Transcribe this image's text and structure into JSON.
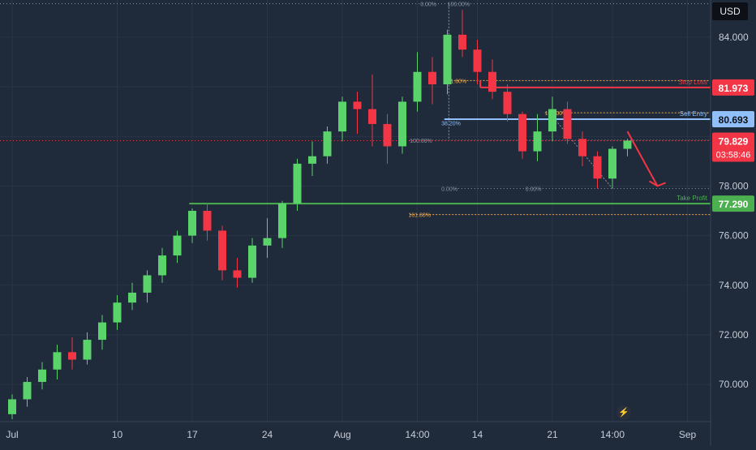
{
  "header": {
    "currency": "USD"
  },
  "chart_data": {
    "type": "candlestick",
    "ylim": [
      68.5,
      85.5
    ],
    "y_ticks": [
      {
        "value": 84,
        "label": "84.000"
      },
      {
        "value": 82,
        "label": ""
      },
      {
        "value": 80,
        "label": ""
      },
      {
        "value": 78,
        "label": "78.000"
      },
      {
        "value": 76,
        "label": "76.000"
      },
      {
        "value": 74,
        "label": "74.000"
      },
      {
        "value": 72,
        "label": "72.000"
      },
      {
        "value": 70,
        "label": "70.000"
      }
    ],
    "x_ticks": [
      {
        "index": 0,
        "label": "Jul"
      },
      {
        "index": 7,
        "label": "10"
      },
      {
        "index": 12,
        "label": "17"
      },
      {
        "index": 17,
        "label": "24"
      },
      {
        "index": 22,
        "label": "Aug"
      },
      {
        "index": 27,
        "label": "14:00"
      },
      {
        "index": 31,
        "label": "14"
      },
      {
        "index": 36,
        "label": "21"
      },
      {
        "index": 40,
        "label": "14:00"
      },
      {
        "index": 45,
        "label": "Sep"
      }
    ],
    "ohlc": [
      [
        68.8,
        69.6,
        68.6,
        69.4
      ],
      [
        69.4,
        70.3,
        69.1,
        70.1
      ],
      [
        70.1,
        70.9,
        69.8,
        70.6
      ],
      [
        70.6,
        71.6,
        70.2,
        71.3
      ],
      [
        71.3,
        71.9,
        70.6,
        71.0
      ],
      [
        71.0,
        72.1,
        70.8,
        71.8
      ],
      [
        71.8,
        72.8,
        71.4,
        72.5
      ],
      [
        72.5,
        73.6,
        72.2,
        73.3
      ],
      [
        73.3,
        74.1,
        73.0,
        73.7
      ],
      [
        73.7,
        74.6,
        73.3,
        74.4
      ],
      [
        74.4,
        75.5,
        74.1,
        75.2
      ],
      [
        75.2,
        76.2,
        74.9,
        76.0
      ],
      [
        76.0,
        77.1,
        75.7,
        77.0
      ],
      [
        77.0,
        77.3,
        75.8,
        76.2
      ],
      [
        76.2,
        76.4,
        74.2,
        74.6
      ],
      [
        74.6,
        75.1,
        73.9,
        74.3
      ],
      [
        74.3,
        75.9,
        74.1,
        75.6
      ],
      [
        75.6,
        76.7,
        75.1,
        75.9
      ],
      [
        75.9,
        77.4,
        75.5,
        77.3
      ],
      [
        77.3,
        79.1,
        77.0,
        78.9
      ],
      [
        78.9,
        79.8,
        78.4,
        79.2
      ],
      [
        79.2,
        80.4,
        78.9,
        80.2
      ],
      [
        80.2,
        81.6,
        79.8,
        81.4
      ],
      [
        81.4,
        81.8,
        80.1,
        81.1
      ],
      [
        81.1,
        82.5,
        79.6,
        80.5
      ],
      [
        80.5,
        80.9,
        78.9,
        79.6
      ],
      [
        79.6,
        81.6,
        79.3,
        81.4
      ],
      [
        81.4,
        83.4,
        81.0,
        82.6
      ],
      [
        82.6,
        83.2,
        81.3,
        82.1
      ],
      [
        82.1,
        84.3,
        81.7,
        84.1
      ],
      [
        84.1,
        85.1,
        83.2,
        83.5
      ],
      [
        83.5,
        83.9,
        82.1,
        82.6
      ],
      [
        82.6,
        83.1,
        81.5,
        81.8
      ],
      [
        81.8,
        82.1,
        80.6,
        80.9
      ],
      [
        80.9,
        81.0,
        79.1,
        79.4
      ],
      [
        79.4,
        80.9,
        79.0,
        80.2
      ],
      [
        80.2,
        81.6,
        79.8,
        81.1
      ],
      [
        81.1,
        81.4,
        79.7,
        79.9
      ],
      [
        79.9,
        80.2,
        78.8,
        79.2
      ],
      [
        79.2,
        79.4,
        77.9,
        78.3
      ],
      [
        78.3,
        79.6,
        77.9,
        79.5
      ],
      [
        79.5,
        79.9,
        79.2,
        79.83
      ]
    ],
    "fib_top": {
      "levels": [
        {
          "label": "0.00%",
          "value": 85.35
        },
        {
          "label": "100.00%",
          "value": 85.35
        },
        {
          "label": "61.80%",
          "value": 82.25
        },
        {
          "label": "100.00%",
          "value": 79.85
        }
      ]
    },
    "fib_bottom": {
      "levels": [
        {
          "label": "100.00%",
          "value": 80.95
        },
        {
          "label": "38.20%",
          "value": 80.55
        },
        {
          "label": "0.00%",
          "value": 77.9
        },
        {
          "label": "0.00%",
          "value": 77.9
        },
        {
          "label": "161.80%",
          "value": 76.85
        }
      ]
    },
    "levels": [
      {
        "name": "Stop Loss",
        "value": 81.973,
        "label": "81.973",
        "color": "#f23645"
      },
      {
        "name": "Sell Entry",
        "value": 80.693,
        "label": "80.693",
        "color": "#90bff9"
      },
      {
        "name": "Take Profit",
        "value": 77.29,
        "label": "77.290",
        "color": "#4caf50"
      }
    ],
    "last_price": {
      "value": 79.829,
      "label": "79.829",
      "countdown": "03:58:46",
      "color": "#f23645"
    },
    "arrow": {
      "from": [
        41,
        80.2
      ],
      "to": [
        43,
        78.0
      ],
      "color": "#f23645"
    },
    "colors": {
      "up": "#5bd36b",
      "down": "#f23645",
      "grid": "#2a3547",
      "text": "#c8cdd6",
      "fib_gray": "#8a94a6",
      "fib_orange": "#f0a84a"
    }
  }
}
